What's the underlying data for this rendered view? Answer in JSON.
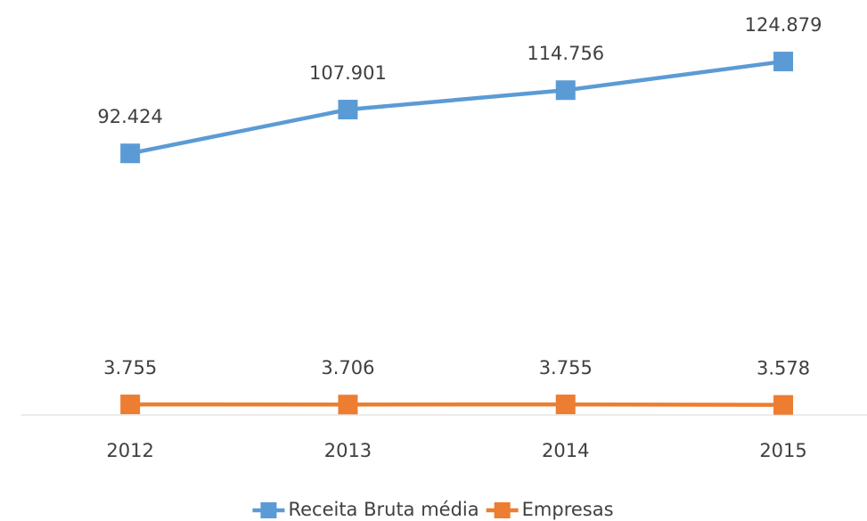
{
  "chart_data": {
    "type": "line",
    "categories": [
      "2012",
      "2013",
      "2014",
      "2015"
    ],
    "series": [
      {
        "name": "Receita Bruta média",
        "color": "#5b9bd5",
        "values": [
          92424,
          107901,
          114756,
          124879
        ],
        "value_labels": [
          "92.424",
          "107.901",
          "114.756",
          "124.879"
        ]
      },
      {
        "name": "Empresas",
        "color": "#ed7d31",
        "values": [
          3755,
          3706,
          3755,
          3578
        ],
        "value_labels": [
          "3.755",
          "3.706",
          "3.755",
          "3.578"
        ]
      }
    ],
    "ylim": [
      0,
      140000
    ],
    "legend": "bottom"
  }
}
